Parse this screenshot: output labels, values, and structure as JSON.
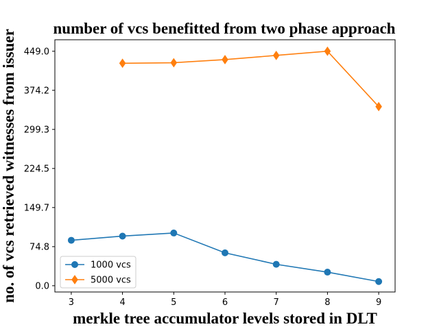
{
  "chart_data": {
    "type": "line",
    "title": "number of vcs benefitted from two phase approach",
    "xlabel": "merkle tree accumulator levels stored in DLT",
    "ylabel": "no. of vcs retrieved witnesses from issuer",
    "x_ticks": [
      3,
      4,
      5,
      6,
      7,
      8,
      9
    ],
    "y_ticks": [
      "0.0",
      "74.8",
      "149.7",
      "224.5",
      "299.3",
      "374.2",
      "449.0"
    ],
    "xlim": [
      2.68,
      9.32
    ],
    "ylim": [
      -12,
      471
    ],
    "grid": false,
    "legend_position": "lower-left",
    "series": [
      {
        "name": "1000 vcs",
        "color": "#1f77b4",
        "marker": "circle",
        "x": [
          3,
          4,
          5,
          6,
          7,
          8,
          9
        ],
        "y": [
          87,
          95,
          101,
          63,
          41,
          26,
          8
        ]
      },
      {
        "name": "5000 vcs",
        "color": "#ff7f0e",
        "marker": "diamond",
        "x": [
          4,
          5,
          6,
          7,
          8,
          9
        ],
        "y": [
          426,
          427,
          433,
          441,
          449,
          343
        ]
      }
    ]
  }
}
